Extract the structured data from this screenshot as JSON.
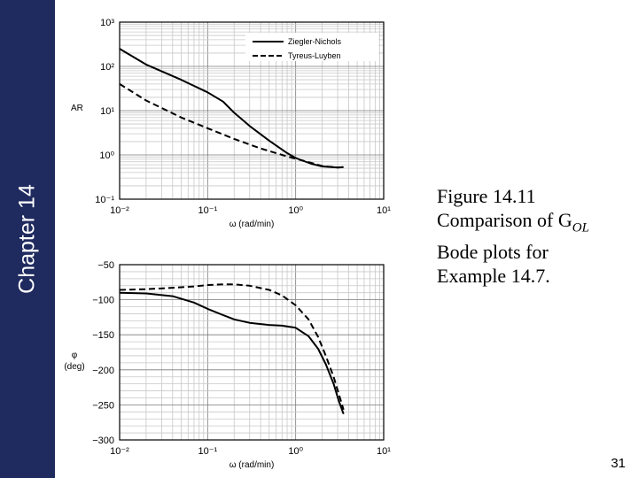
{
  "slide": {
    "chapter_label": "Chapter 14",
    "page_number": "31",
    "sidebar_color": "#1f2a5e"
  },
  "caption": {
    "line1": "Figure 14.11",
    "line2_prefix": "Comparison of G",
    "line2_subscript": "OL",
    "line3": "Bode plots for",
    "line4": "Example 14.7."
  },
  "chart_data": [
    {
      "type": "line",
      "xscale": "log",
      "yscale": "log",
      "xlim": [
        0.01,
        10
      ],
      "ylim": [
        0.1,
        1000
      ],
      "ylabel": "AR",
      "xlabel": "ω (rad/min)",
      "grid": true,
      "legend_position": "top-right",
      "x_ticks": [
        "10⁻²",
        "10⁻¹",
        "10⁰",
        "10¹"
      ],
      "y_ticks": [
        "10⁻¹",
        "10⁰",
        "10¹",
        "10²",
        "10³"
      ],
      "series": [
        {
          "name": "Ziegler-Nichols",
          "style": "solid",
          "points": [
            [
              0.01,
              250
            ],
            [
              0.02,
              110
            ],
            [
              0.05,
              50
            ],
            [
              0.1,
              26
            ],
            [
              0.15,
              16
            ],
            [
              0.2,
              9
            ],
            [
              0.3,
              4.5
            ],
            [
              0.5,
              2.1
            ],
            [
              0.8,
              1.1
            ],
            [
              1.0,
              0.85
            ],
            [
              1.5,
              0.63
            ],
            [
              2.0,
              0.55
            ],
            [
              3.0,
              0.52
            ],
            [
              3.5,
              0.53
            ]
          ]
        },
        {
          "name": "Tyreus-Luyben",
          "style": "dashed",
          "points": [
            [
              0.01,
              40
            ],
            [
              0.02,
              17
            ],
            [
              0.05,
              7
            ],
            [
              0.1,
              4
            ],
            [
              0.2,
              2.3
            ],
            [
              0.4,
              1.4
            ],
            [
              0.7,
              1.0
            ],
            [
              1.0,
              0.82
            ],
            [
              1.5,
              0.66
            ],
            [
              2.0,
              0.56
            ],
            [
              3.0,
              0.52
            ],
            [
              3.5,
              0.53
            ]
          ]
        }
      ]
    },
    {
      "type": "line",
      "xscale": "log",
      "xlim": [
        0.01,
        10
      ],
      "ylim": [
        -300,
        -50
      ],
      "ylabel": "φ",
      "ylabel_unit": "(deg)",
      "xlabel": "ω (rad/min)",
      "grid": true,
      "x_ticks": [
        "10⁻²",
        "10⁻¹",
        "10⁰",
        "10¹"
      ],
      "y_ticks": [
        "−50",
        "−100",
        "−150",
        "−200",
        "−250",
        "−300"
      ],
      "series": [
        {
          "name": "Ziegler-Nichols",
          "style": "solid",
          "points": [
            [
              0.01,
              -90
            ],
            [
              0.02,
              -91
            ],
            [
              0.04,
              -95
            ],
            [
              0.07,
              -104
            ],
            [
              0.1,
              -113
            ],
            [
              0.15,
              -122
            ],
            [
              0.2,
              -128
            ],
            [
              0.3,
              -133
            ],
            [
              0.5,
              -136
            ],
            [
              0.7,
              -137
            ],
            [
              1.0,
              -140
            ],
            [
              1.4,
              -152
            ],
            [
              1.8,
              -170
            ],
            [
              2.2,
              -192
            ],
            [
              2.7,
              -220
            ],
            [
              3.1,
              -245
            ],
            [
              3.5,
              -263
            ]
          ]
        },
        {
          "name": "Tyreus-Luyben",
          "style": "dashed",
          "points": [
            [
              0.01,
              -86
            ],
            [
              0.02,
              -85
            ],
            [
              0.04,
              -83
            ],
            [
              0.07,
              -81
            ],
            [
              0.1,
              -79
            ],
            [
              0.15,
              -78
            ],
            [
              0.2,
              -78
            ],
            [
              0.3,
              -80
            ],
            [
              0.5,
              -86
            ],
            [
              0.7,
              -94
            ],
            [
              1.0,
              -108
            ],
            [
              1.4,
              -128
            ],
            [
              1.8,
              -153
            ],
            [
              2.2,
              -180
            ],
            [
              2.7,
              -210
            ],
            [
              3.1,
              -235
            ],
            [
              3.5,
              -257
            ]
          ]
        }
      ]
    }
  ]
}
